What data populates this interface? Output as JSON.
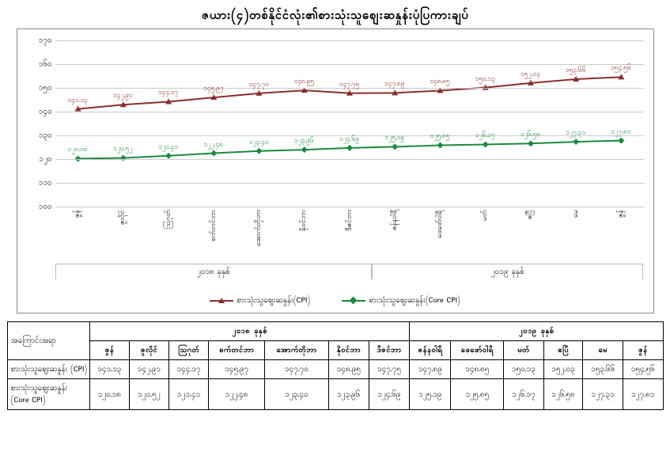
{
  "title": "ဇယား(၄)တစ်နိုင်ငံလုံး၏စားသုံးသူဈေးဆနှုန်းပုံပြကားချပ်",
  "chart": {
    "type": "line",
    "ylim": [
      100,
      170
    ],
    "ytick_step": 10,
    "yticks_labels": [
      "၁၀၀",
      "၁၁၀",
      "၁၂၀",
      "၁၃၀",
      "၁၄၀",
      "၁၅၀",
      "၁၆၀",
      "၁၇၀"
    ],
    "background_color": "#ffffff",
    "grid_color": "#cccccc",
    "xlabels": [
      "ဇွန်",
      "ဇူလိုင်",
      "ဩဂုတ်",
      "စက်တင်ဘာ",
      "အောက်တိုဘာ",
      "နိုဝင်ဘာ",
      "ဒီဇင်ဘာ",
      "ဇန်နဝါရီ",
      "ဖေဖော်ဝါရီ",
      "မတ်",
      "ဧပြီ",
      "မေ",
      "ဇွန်"
    ],
    "year_groups": [
      {
        "label": "၂၀၁၈ ခုနှစ်",
        "span": [
          0,
          7
        ]
      },
      {
        "label": "၂၀၁၉ ခုနှစ်",
        "span": [
          7,
          13
        ]
      }
    ],
    "series": [
      {
        "name": "စားသုံးသူဈေးဆနှုန်း(CPI)",
        "color": "#8b2e2e",
        "marker": "triangle",
        "values": [
          141.13,
          142.91,
          144.17,
          145.97,
          147.7,
          148.95,
          147.75,
          147.89,
          148.85,
          150.13,
          152.03,
          153.66,
          154.56
        ],
        "labels": [
          "၁၄၁.၁၃",
          "၁၄၂.၉၁",
          "၁၄၄.၁၇",
          "၁၄၅.၉၇",
          "၁၄၇.၇၀",
          "၁၄၈.၉၅",
          "၁၄၇.၇၅",
          "၁၄၇.၈၉",
          "၁၄၈.၈၅",
          "၁၅၀.၁၃",
          "၁၅၂.၀၃",
          "၁၅၃.၆၆",
          "၁၅၄.၅၆"
        ]
      },
      {
        "name": "စားသုံးသူဈေးဆနှုန်း(Core CPI)",
        "color": "#1b8a3f",
        "marker": "diamond",
        "values": [
          120.18,
          120.52,
          121.41,
          122.48,
          123.4,
          123.96,
          124.69,
          125.19,
          125.85,
          126.17,
          126.58,
          127.31,
          127.81
        ],
        "labels": [
          "၁၂၀.၁၈",
          "၁၂၀.၅၂",
          "၁၂၁.၄၁",
          "၁၂၂.၄၈",
          "၁၂၃.၄၀",
          "၁၂၃.၉၆",
          "၁၂၄.၆၉",
          "၁၂၅.၁၉",
          "၁၂၅.၈၅",
          "၁၂၆.၁၇",
          "၁၂၆.၅၈",
          "၁၂၇.၃၁",
          "၁၂၇.၈၁"
        ]
      }
    ]
  },
  "table": {
    "header_row1": "အကြောင်းအရာ",
    "year_headers": [
      "၂၀၁၈ ခုနှစ်",
      "၂၀၁၉ ခုနှစ်"
    ],
    "month_headers": [
      "ဇွန်",
      "ဇူလိုင်",
      "ဩဂုတ်",
      "စက်တင်ဘာ",
      "အောက်တိုဘာ",
      "နိုဝင်ဘာ",
      "ဒီဇင်ဘာ",
      "ဇန်နဝါရီ",
      "ဖေဖော်ဝါရီ",
      "မတ်",
      "ဧပြီ",
      "မေ",
      "ဇွန်"
    ],
    "rows": [
      {
        "label": "စားသုံးသူဈေးဆနှုန်း (CPI)",
        "cells": [
          "၁၄၁.၁၃",
          "၁၄၂.၉၁",
          "၁၄၄.၁၇",
          "၁၄၅.၉၇",
          "၁၄၇.၇၀",
          "၁၄၈.၉၅",
          "၁၄၇.၇၅",
          "၁၄၇.၈၉",
          "၁၄၈.၈၅",
          "၁၅၀.၁၃",
          "၁၅၂.၀၃",
          "၁၅၃.၆၆",
          "၁၅၄.၅၆"
        ]
      },
      {
        "label": "စားသုံးသူဈေးဆနှုန်း (Core CPI)",
        "cells": [
          "၁၂၀.၁၈",
          "၁၂၀.၅၂",
          "၁၂၁.၄၁",
          "၁၂၂.၄၈",
          "၁၂၃.၄၀",
          "၁၂၃.၉၆",
          "၁၂၄.၆၉",
          "၁၂၅.၁၉",
          "၁၂၅.၈၅",
          "၁၂၆.၁၇",
          "၁၂၆.၅၈",
          "၁၂၇.၃၁",
          "၁၂၇.၈၁"
        ]
      }
    ]
  }
}
